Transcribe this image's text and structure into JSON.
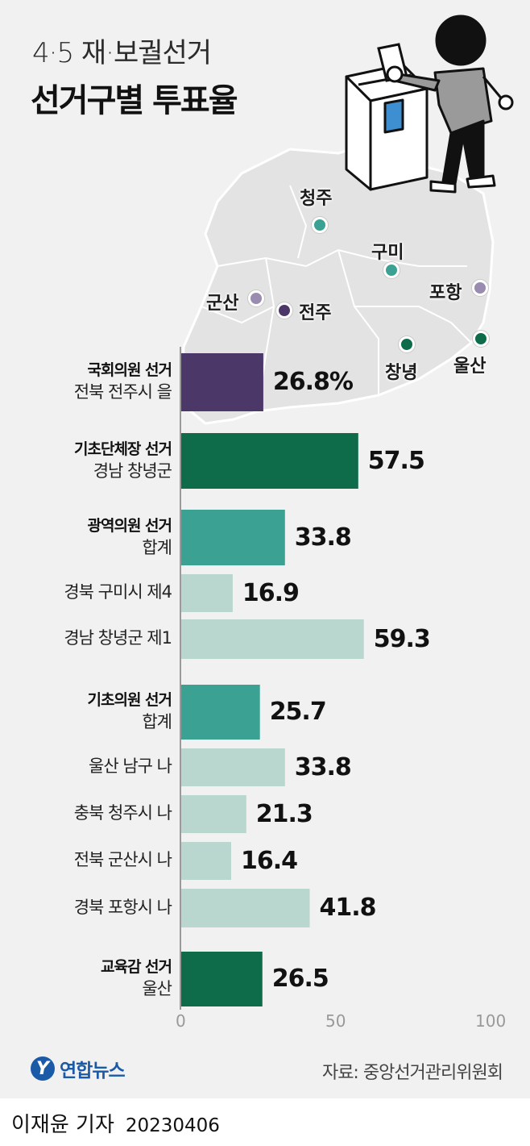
{
  "header": {
    "title_line1": "4·5 재·보궐선거",
    "title_line2": "선거구별 투표율"
  },
  "map": {
    "cities": [
      {
        "id": "cheongju",
        "name": "청주",
        "color": "#3aa193"
      },
      {
        "id": "gumi",
        "name": "구미",
        "color": "#3aa193"
      },
      {
        "id": "pohang",
        "name": "포항",
        "color": "#9a8bb0"
      },
      {
        "id": "gunsan",
        "name": "군산",
        "color": "#9a8bb0"
      },
      {
        "id": "jeonju",
        "name": "전주",
        "color": "#4b3869"
      },
      {
        "id": "changnyeong",
        "name": "창녕",
        "color": "#0e6c4b"
      },
      {
        "id": "ulsan",
        "name": "울산",
        "color": "#0e6c4b"
      }
    ]
  },
  "chart_data": {
    "type": "bar",
    "orientation": "horizontal",
    "xlim": [
      0,
      100
    ],
    "x_ticks": [
      "0",
      "50",
      "100"
    ],
    "categories": [
      {
        "head": "국회의원 선거",
        "sub": "전북 전주시 을",
        "value": 26.8,
        "label": "26.8%",
        "color": "#4b3869",
        "style": "group"
      },
      {
        "head": "기초단체장 선거",
        "sub": "경남 창녕군",
        "value": 57.5,
        "label": "57.5",
        "color": "#0e6c4b",
        "style": "group"
      },
      {
        "head": "광역의원 선거",
        "sub": "합계",
        "value": 33.8,
        "label": "33.8",
        "color": "#3aa193",
        "style": "group"
      },
      {
        "head": "",
        "sub": "경북 구미시 제4",
        "value": 16.9,
        "label": "16.9",
        "color": "#b9d6cf",
        "style": "detail"
      },
      {
        "head": "",
        "sub": "경남 창녕군 제1",
        "value": 59.3,
        "label": "59.3",
        "color": "#b9d6cf",
        "style": "detail"
      },
      {
        "head": "기초의원 선거",
        "sub": "합계",
        "value": 25.7,
        "label": "25.7",
        "color": "#3aa193",
        "style": "group"
      },
      {
        "head": "",
        "sub": "울산 남구 나",
        "value": 33.8,
        "label": "33.8",
        "color": "#b9d6cf",
        "style": "detail"
      },
      {
        "head": "",
        "sub": "충북 청주시 나",
        "value": 21.3,
        "label": "21.3",
        "color": "#b9d6cf",
        "style": "detail"
      },
      {
        "head": "",
        "sub": "전북 군산시 나",
        "value": 16.4,
        "label": "16.4",
        "color": "#b9d6cf",
        "style": "detail"
      },
      {
        "head": "",
        "sub": "경북 포항시 나",
        "value": 41.8,
        "label": "41.8",
        "color": "#b9d6cf",
        "style": "detail"
      },
      {
        "head": "교육감 선거",
        "sub": "울산",
        "value": 26.5,
        "label": "26.5",
        "color": "#0e6c4b",
        "style": "group"
      }
    ]
  },
  "footer": {
    "logo_mark": "Y",
    "logo_text": "연합뉴스",
    "source": "자료: 중앙선거관리위원회",
    "reporter": "이재윤 기자",
    "date": "20230406"
  }
}
